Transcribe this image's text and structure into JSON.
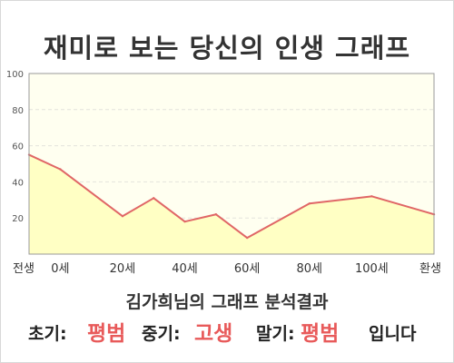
{
  "title": "재미로 보는 당신의 인생 그래프",
  "summary": "김가희님의 그래프 분석결과",
  "verdict": {
    "early_label": "초기:",
    "early_value": "평범",
    "mid_label": "중기:",
    "mid_value": "고생",
    "late_label": "말기:",
    "late_value": "평범",
    "ending": "입니다"
  },
  "colors": {
    "line": "#e06666",
    "fill": "#ffffc4",
    "plot_bg": "#fffff0",
    "highlight": "#e85a5a"
  },
  "chart_data": {
    "type": "area",
    "title": "",
    "xlabel": "",
    "ylabel": "",
    "ylim": [
      0,
      100
    ],
    "yticks": [
      20,
      40,
      60,
      80,
      100
    ],
    "xlim": [
      -10,
      120
    ],
    "xticks": [
      {
        "value": -10,
        "label": "전생"
      },
      {
        "value": 0,
        "label": "0세"
      },
      {
        "value": 20,
        "label": "20세"
      },
      {
        "value": 40,
        "label": "40세"
      },
      {
        "value": 60,
        "label": "60세"
      },
      {
        "value": 80,
        "label": "80세"
      },
      {
        "value": 100,
        "label": "100세"
      },
      {
        "value": 120,
        "label": "환생"
      }
    ],
    "grid": true,
    "points": [
      {
        "x": -10,
        "y": 55
      },
      {
        "x": 0,
        "y": 47
      },
      {
        "x": 20,
        "y": 21
      },
      {
        "x": 30,
        "y": 31
      },
      {
        "x": 40,
        "y": 18
      },
      {
        "x": 50,
        "y": 22
      },
      {
        "x": 60,
        "y": 9
      },
      {
        "x": 80,
        "y": 28
      },
      {
        "x": 100,
        "y": 32
      },
      {
        "x": 120,
        "y": 22
      }
    ]
  }
}
